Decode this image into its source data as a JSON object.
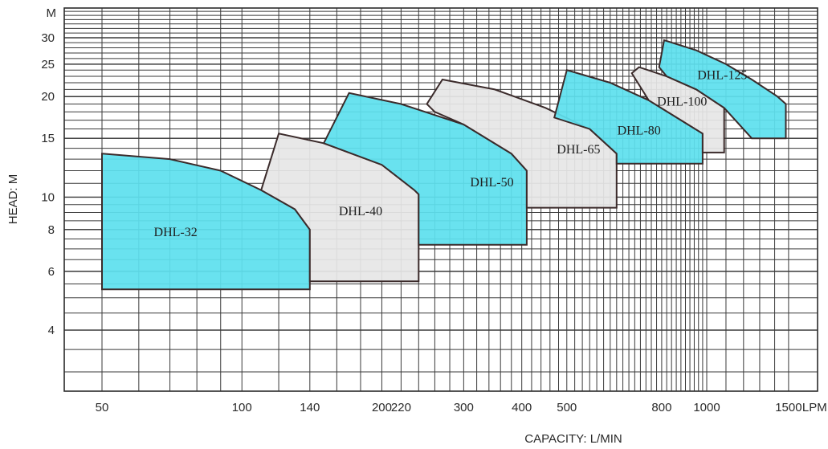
{
  "chart_data": {
    "type": "area",
    "title": "",
    "xlabel": "CAPACITY: L/MIN",
    "ylabel": "HEAD: M",
    "x_scale": "log",
    "y_scale": "log",
    "xlim": [
      40,
      1600
    ],
    "ylim": [
      3,
      36
    ],
    "x_ticks": [
      {
        "value": 50,
        "label": "50"
      },
      {
        "value": 100,
        "label": "100"
      },
      {
        "value": 140,
        "label": "140"
      },
      {
        "value": 200,
        "label": "200"
      },
      {
        "value": 220,
        "label": "220"
      },
      {
        "value": 300,
        "label": "300"
      },
      {
        "value": 400,
        "label": "400"
      },
      {
        "value": 500,
        "label": "500"
      },
      {
        "value": 800,
        "label": "800"
      },
      {
        "value": 1000,
        "label": "1000"
      },
      {
        "value": 1500,
        "label": "1500"
      }
    ],
    "x_unit_label": "LPM",
    "y_ticks": [
      {
        "value": 4,
        "label": "4"
      },
      {
        "value": 6,
        "label": "6"
      },
      {
        "value": 8,
        "label": "8"
      },
      {
        "value": 10,
        "label": "10"
      },
      {
        "value": 15,
        "label": "15"
      },
      {
        "value": 20,
        "label": "20"
      },
      {
        "value": 25,
        "label": "25"
      },
      {
        "value": 30,
        "label": "30"
      }
    ],
    "y_unit_label": "M",
    "grid": true,
    "series": [
      {
        "name": "DHL-32",
        "fill": "#5ee0ee",
        "points": [
          [
            50,
            5.3
          ],
          [
            50,
            13.5
          ],
          [
            70,
            13.0
          ],
          [
            90,
            12.0
          ],
          [
            110,
            10.5
          ],
          [
            130,
            9.2
          ],
          [
            140,
            8.0
          ],
          [
            140,
            5.3
          ]
        ],
        "label_at": [
          72,
          7.8
        ]
      },
      {
        "name": "DHL-40",
        "fill": "#e6e6e6",
        "points": [
          [
            110,
            10.5
          ],
          [
            120,
            15.5
          ],
          [
            150,
            14.5
          ],
          [
            200,
            12.5
          ],
          [
            235,
            10.5
          ],
          [
            240,
            10.2
          ],
          [
            240,
            5.6
          ],
          [
            140,
            5.6
          ],
          [
            140,
            8.0
          ],
          [
            130,
            9.2
          ]
        ],
        "label_at": [
          180,
          9.0
        ]
      },
      {
        "name": "DHL-50",
        "fill": "#5ee0ee",
        "points": [
          [
            150,
            14.5
          ],
          [
            170,
            20.5
          ],
          [
            220,
            19.0
          ],
          [
            300,
            16.5
          ],
          [
            380,
            13.5
          ],
          [
            410,
            12.0
          ],
          [
            410,
            7.2
          ],
          [
            240,
            7.2
          ],
          [
            240,
            10.2
          ],
          [
            235,
            10.5
          ],
          [
            200,
            12.5
          ]
        ],
        "label_at": [
          345,
          11.0
        ]
      },
      {
        "name": "DHL-65",
        "fill": "#e6e6e6",
        "points": [
          [
            250,
            19.0
          ],
          [
            270,
            22.5
          ],
          [
            350,
            21.0
          ],
          [
            450,
            18.5
          ],
          [
            560,
            16.0
          ],
          [
            640,
            13.5
          ],
          [
            640,
            9.3
          ],
          [
            410,
            9.3
          ],
          [
            410,
            12.0
          ],
          [
            380,
            13.5
          ],
          [
            300,
            16.5
          ],
          [
            260,
            18.0
          ]
        ],
        "label_at": [
          530,
          13.8
        ]
      },
      {
        "name": "DHL-80",
        "fill": "#5ee0ee",
        "points": [
          [
            470,
            17.3
          ],
          [
            500,
            24.0
          ],
          [
            620,
            22.0
          ],
          [
            750,
            19.5
          ],
          [
            880,
            17.0
          ],
          [
            980,
            15.5
          ],
          [
            980,
            12.6
          ],
          [
            640,
            12.6
          ],
          [
            640,
            13.5
          ],
          [
            560,
            16.0
          ]
        ],
        "label_at": [
          715,
          15.7
        ]
      },
      {
        "name": "DHL-100",
        "fill": "#e6e6e6",
        "points": [
          [
            690,
            23.5
          ],
          [
            715,
            24.5
          ],
          [
            820,
            23.0
          ],
          [
            950,
            21.0
          ],
          [
            1090,
            18.5
          ],
          [
            1090,
            13.6
          ],
          [
            980,
            13.6
          ],
          [
            980,
            15.5
          ],
          [
            880,
            17.0
          ],
          [
            750,
            19.5
          ]
        ],
        "label_at": [
          885,
          19.2
        ]
      },
      {
        "name": "DHL-125",
        "fill": "#5ee0ee",
        "points": [
          [
            790,
            24.5
          ],
          [
            810,
            29.5
          ],
          [
            950,
            27.5
          ],
          [
            1100,
            25.0
          ],
          [
            1250,
            22.5
          ],
          [
            1420,
            20.0
          ],
          [
            1480,
            19.0
          ],
          [
            1480,
            15.0
          ],
          [
            1250,
            15.0
          ],
          [
            1090,
            18.5
          ],
          [
            950,
            21.0
          ],
          [
            820,
            23.0
          ]
        ],
        "label_at": [
          1080,
          23.0
        ]
      }
    ]
  }
}
